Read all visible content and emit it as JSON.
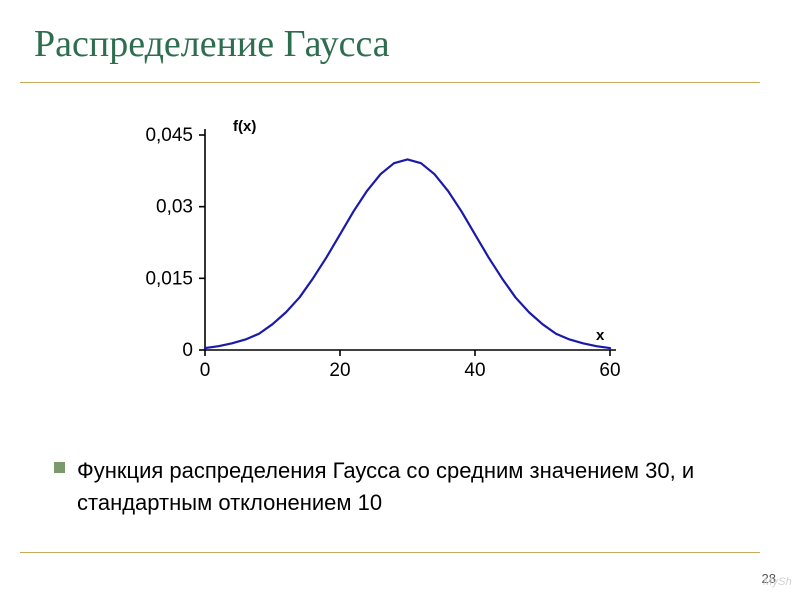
{
  "slide": {
    "title": "Распределение Гаусса",
    "title_color": "#2e6e50",
    "rule_color": "#c9a95c",
    "slide_number": "28",
    "watermark": "MySh",
    "bullet": {
      "square_color": "#7a9a6c",
      "text": "Функция распределения Гаусса со средним значением 30, и стандартным отклонением 10"
    }
  },
  "chart": {
    "type": "line",
    "background_color": "#ffffff",
    "axis_color": "#000000",
    "axis_width": 1.6,
    "grid_on": false,
    "line_color": "#1a1aaa",
    "line_width": 2.2,
    "x": {
      "lim": [
        0,
        60
      ],
      "ticks": [
        0,
        20,
        40,
        60
      ],
      "tick_labels": [
        "0",
        "20",
        "40",
        "60"
      ],
      "label": "x",
      "label_fontsize": 15,
      "label_weight": "bold",
      "tick_fontsize": 19
    },
    "y": {
      "lim": [
        0,
        0.045
      ],
      "ticks": [
        0,
        0.015,
        0.03,
        0.045
      ],
      "tick_labels": [
        "0",
        "0,015",
        "0,03",
        "0,045"
      ],
      "label": "f(x)",
      "label_fontsize": 15,
      "label_weight": "bold",
      "tick_fontsize": 19
    },
    "series": [
      {
        "x": [
          0,
          2,
          4,
          6,
          8,
          10,
          12,
          14,
          16,
          18,
          20,
          22,
          24,
          26,
          28,
          30,
          32,
          34,
          36,
          38,
          40,
          42,
          44,
          46,
          48,
          50,
          52,
          54,
          56,
          58,
          60
        ],
        "y": [
          0.0004,
          0.0008,
          0.0014,
          0.0022,
          0.0034,
          0.0054,
          0.0079,
          0.011,
          0.015,
          0.0194,
          0.0242,
          0.029,
          0.0333,
          0.0368,
          0.0391,
          0.03989,
          0.0391,
          0.0368,
          0.0333,
          0.029,
          0.0242,
          0.0194,
          0.015,
          0.011,
          0.0079,
          0.0054,
          0.0034,
          0.0022,
          0.0014,
          0.0008,
          0.0004
        ]
      }
    ]
  }
}
